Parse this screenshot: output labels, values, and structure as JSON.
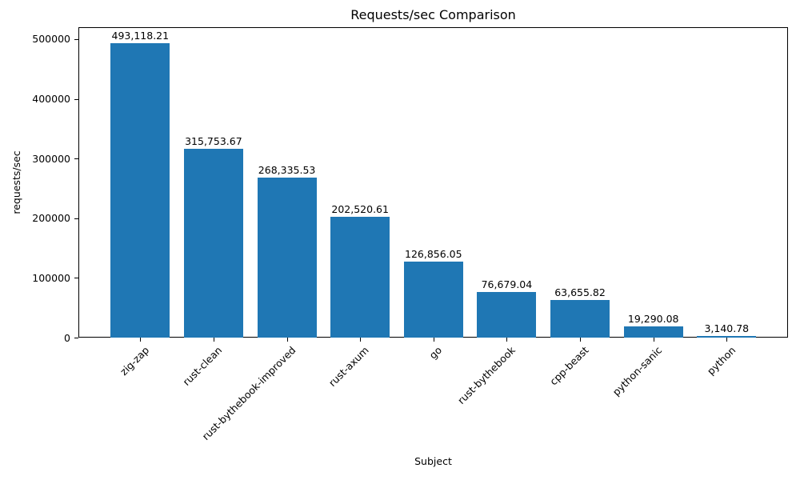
{
  "chart_data": {
    "type": "bar",
    "title": "Requests/sec Comparison",
    "xlabel": "Subject",
    "ylabel": "requests/sec",
    "categories": [
      "zig-zap",
      "rust-clean",
      "rust-bythebook-improved",
      "rust-axum",
      "go",
      "rust-bythebook",
      "cpp-beast",
      "python-sanic",
      "python"
    ],
    "values": [
      493118.21,
      315753.67,
      268335.53,
      202520.61,
      126856.05,
      76679.04,
      63655.82,
      19290.08,
      3140.78
    ],
    "value_labels": [
      "493,118.21",
      "315,753.67",
      "268,335.53",
      "202,520.61",
      "126,856.05",
      "76,679.04",
      "63,655.82",
      "19,290.08",
      "3,140.78"
    ],
    "yticks": [
      0,
      100000,
      200000,
      300000,
      400000,
      500000
    ],
    "ytick_labels": [
      "0",
      "100000",
      "200000",
      "300000",
      "400000",
      "500000"
    ],
    "ylim": [
      0,
      520000
    ],
    "bar_color": "#1f77b4",
    "grid": false,
    "legend": false
  }
}
